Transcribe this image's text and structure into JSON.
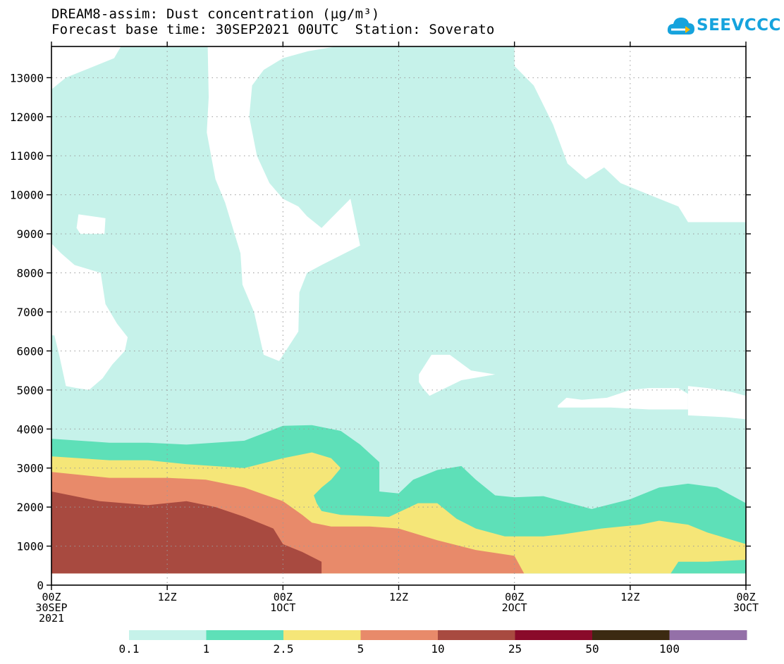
{
  "header": {
    "line1": "DREAM8-assim: Dust concentration (µg/m³)",
    "line2": "Forecast base time: 30SEP2021 00UTC  Station: Soverato"
  },
  "logo": {
    "text": "SEEVCCC",
    "color": "#16a3dd",
    "icon": "cloud-icon"
  },
  "chart_data": {
    "type": "heatmap",
    "ylim": [
      0,
      13800
    ],
    "yticks": [
      "0",
      "1000",
      "2000",
      "3000",
      "4000",
      "5000",
      "6000",
      "7000",
      "8000",
      "9000",
      "10000",
      "11000",
      "12000",
      "13000"
    ],
    "xticks": [
      {
        "time": "00Z",
        "date": "30SEP",
        "year": "2021"
      },
      {
        "time": "12Z",
        "date": "",
        "year": ""
      },
      {
        "time": "00Z",
        "date": "1OCT",
        "year": ""
      },
      {
        "time": "12Z",
        "date": "",
        "year": ""
      },
      {
        "time": "00Z",
        "date": "2OCT",
        "year": ""
      },
      {
        "time": "12Z",
        "date": "",
        "year": ""
      },
      {
        "time": "00Z",
        "date": "3OCT",
        "year": ""
      }
    ],
    "levels": [
      "0.1",
      "1",
      "2.5",
      "5",
      "10",
      "25",
      "50",
      "100"
    ],
    "colors": [
      "#c6f2ea",
      "#5ee0b8",
      "#f5e678",
      "#e88a6a",
      "#a84a40",
      "#8a0a2a",
      "#3c2a12",
      "#9470a8"
    ],
    "grid": true,
    "legend_placement": "bottom"
  }
}
